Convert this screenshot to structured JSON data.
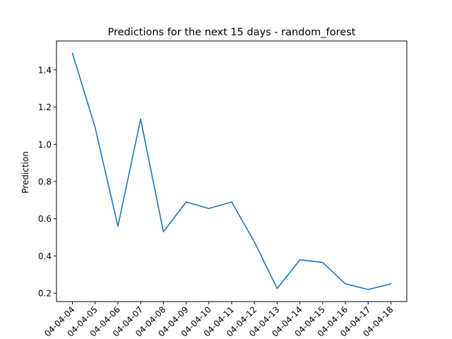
{
  "chart_data": {
    "type": "line",
    "title": "Predictions for the next 15 days - random_forest",
    "xlabel": "",
    "ylabel": "Prediction",
    "x": [
      "04-04-04",
      "04-04-05",
      "04-04-06",
      "04-04-07",
      "04-04-08",
      "04-04-09",
      "04-04-10",
      "04-04-11",
      "04-04-12",
      "04-04-13",
      "04-04-14",
      "04-04-15",
      "04-04-16",
      "04-04-17",
      "04-04-18"
    ],
    "series": [
      {
        "values": [
          1.49,
          1.09,
          0.56,
          1.135,
          0.53,
          0.69,
          0.655,
          0.69,
          0.475,
          0.225,
          0.38,
          0.365,
          0.25,
          0.22,
          0.25
        ],
        "color": "#1f77b4"
      }
    ],
    "yticks": [
      "0.2",
      "0.4",
      "0.6",
      "0.8",
      "1.0",
      "1.2",
      "1.4"
    ],
    "ylim": [
      0.155,
      1.555
    ],
    "grid": false,
    "legend": "none"
  }
}
